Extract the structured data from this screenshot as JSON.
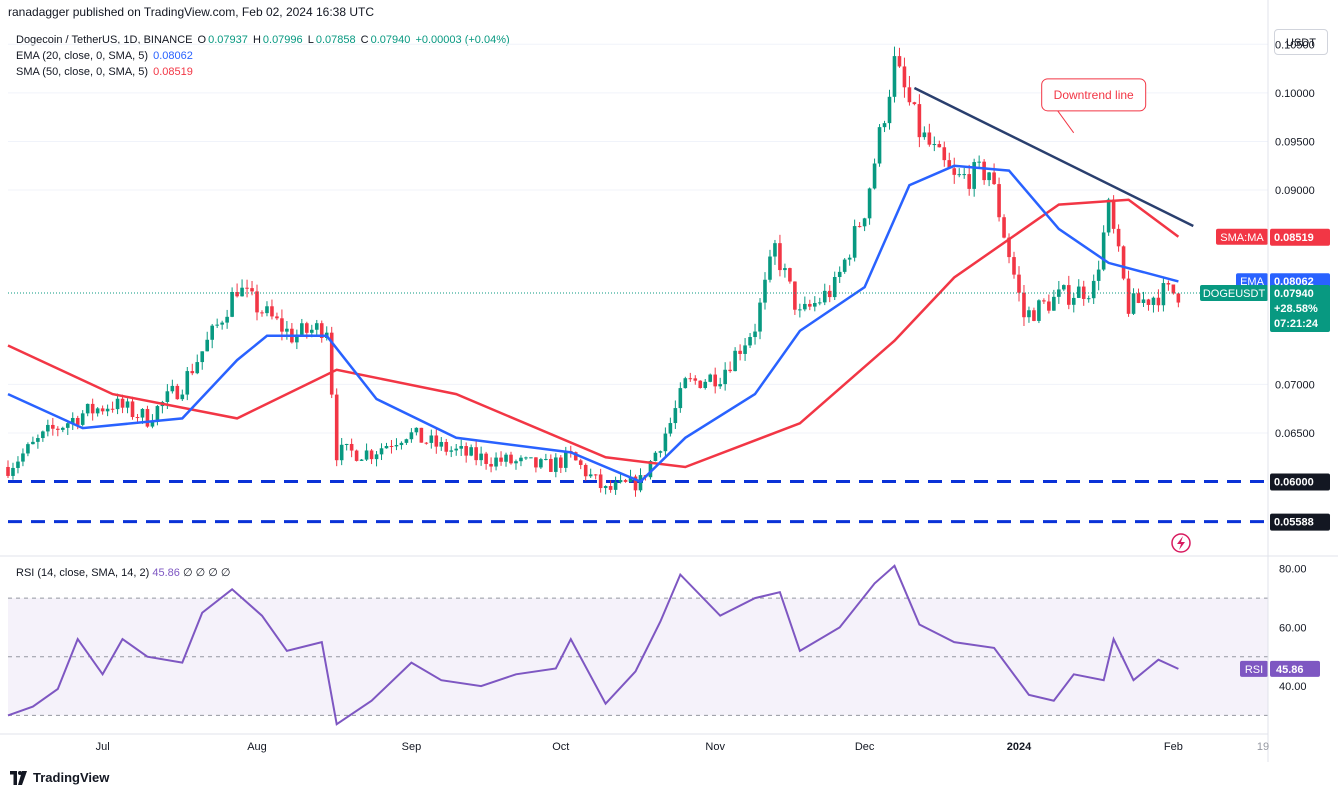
{
  "header": {
    "published": "ranadagger published on TradingView.com, Feb 02, 2024 16:38 UTC",
    "symbol": "Dogecoin / TetherUS, 1D, BINANCE",
    "ohlc": {
      "o_label": "O",
      "o": "0.07937",
      "h_label": "H",
      "h": "0.07996",
      "l_label": "L",
      "l": "0.07858",
      "c_label": "C",
      "c": "0.07940",
      "change": "+0.00003 (+0.04%)"
    },
    "ema_label": "EMA (20, close, 0, SMA, 5)",
    "ema_value": "0.08062",
    "sma_label": "SMA (50, close, 0, SMA, 5)",
    "sma_value": "0.08519",
    "currency_button": "USDT"
  },
  "footer": {
    "brand": "TradingView"
  },
  "colors": {
    "up": "#089981",
    "down": "#f23645",
    "ema": "#2962ff",
    "sma": "#f23645",
    "rsi": "#7e57c2",
    "support": "#0a32d7",
    "trend": "#2a3f6e"
  },
  "icons": {
    "logo": "tradingview-logo-icon",
    "alert": "lightning-icon"
  },
  "chart_data": [
    {
      "type": "candlestick",
      "pair": "DOGE/USDT",
      "timeframe": "1D",
      "y_axis": {
        "ticks": [
          0.105,
          0.1,
          0.095,
          0.09,
          0.07,
          0.065
        ],
        "tick_labels": [
          "0.10500",
          "0.10000",
          "0.09500",
          "0.09000",
          "0.07000",
          "0.06500"
        ],
        "range": [
          0.0545,
          0.1075
        ]
      },
      "x_axis": {
        "tick_labels": [
          "Jul",
          "Aug",
          "Sep",
          "Oct",
          "Nov",
          "Dec",
          "2024",
          "Feb",
          "19"
        ]
      },
      "x_range": [
        "2023-06-12",
        "2024-02-20"
      ],
      "closes_approx": [
        {
          "date": "2023-06-12",
          "close": 0.0615
        },
        {
          "date": "2023-06-20",
          "close": 0.065
        },
        {
          "date": "2023-06-27",
          "close": 0.067
        },
        {
          "date": "2023-07-03",
          "close": 0.068
        },
        {
          "date": "2023-07-10",
          "close": 0.0665
        },
        {
          "date": "2023-07-17",
          "close": 0.07
        },
        {
          "date": "2023-07-24",
          "close": 0.076
        },
        {
          "date": "2023-07-28",
          "close": 0.08
        },
        {
          "date": "2023-08-01",
          "close": 0.078
        },
        {
          "date": "2023-08-08",
          "close": 0.075
        },
        {
          "date": "2023-08-15",
          "close": 0.076
        },
        {
          "date": "2023-08-17",
          "close": 0.063
        },
        {
          "date": "2023-08-24",
          "close": 0.063
        },
        {
          "date": "2023-08-31",
          "close": 0.065
        },
        {
          "date": "2023-09-07",
          "close": 0.0635
        },
        {
          "date": "2023-09-14",
          "close": 0.0625
        },
        {
          "date": "2023-09-21",
          "close": 0.062
        },
        {
          "date": "2023-09-28",
          "close": 0.0615
        },
        {
          "date": "2023-10-03",
          "close": 0.0625
        },
        {
          "date": "2023-10-10",
          "close": 0.059
        },
        {
          "date": "2023-10-17",
          "close": 0.06
        },
        {
          "date": "2023-10-23",
          "close": 0.066
        },
        {
          "date": "2023-10-26",
          "close": 0.07
        },
        {
          "date": "2023-11-02",
          "close": 0.071
        },
        {
          "date": "2023-11-09",
          "close": 0.076
        },
        {
          "date": "2023-11-13",
          "close": 0.084
        },
        {
          "date": "2023-11-18",
          "close": 0.077
        },
        {
          "date": "2023-11-25",
          "close": 0.08
        },
        {
          "date": "2023-12-01",
          "close": 0.088
        },
        {
          "date": "2023-12-07",
          "close": 0.103
        },
        {
          "date": "2023-12-12",
          "close": 0.096
        },
        {
          "date": "2023-12-19",
          "close": 0.091
        },
        {
          "date": "2023-12-26",
          "close": 0.092
        },
        {
          "date": "2024-01-02",
          "close": 0.077
        },
        {
          "date": "2024-01-09",
          "close": 0.079
        },
        {
          "date": "2024-01-16",
          "close": 0.08
        },
        {
          "date": "2024-01-19",
          "close": 0.088
        },
        {
          "date": "2024-01-23",
          "close": 0.078
        },
        {
          "date": "2024-01-30",
          "close": 0.0795
        },
        {
          "date": "2024-02-02",
          "close": 0.0794
        }
      ],
      "ema20_approx": [
        {
          "date": "2023-06-12",
          "v": 0.069
        },
        {
          "date": "2023-06-27",
          "v": 0.0655
        },
        {
          "date": "2023-07-17",
          "v": 0.0665
        },
        {
          "date": "2023-07-28",
          "v": 0.0725
        },
        {
          "date": "2023-08-03",
          "v": 0.075
        },
        {
          "date": "2023-08-15",
          "v": 0.075
        },
        {
          "date": "2023-08-25",
          "v": 0.0685
        },
        {
          "date": "2023-09-10",
          "v": 0.0645
        },
        {
          "date": "2023-10-03",
          "v": 0.063
        },
        {
          "date": "2023-10-17",
          "v": 0.06
        },
        {
          "date": "2023-10-26",
          "v": 0.0645
        },
        {
          "date": "2023-11-09",
          "v": 0.069
        },
        {
          "date": "2023-11-18",
          "v": 0.0755
        },
        {
          "date": "2023-12-01",
          "v": 0.08
        },
        {
          "date": "2023-12-10",
          "v": 0.0905
        },
        {
          "date": "2023-12-19",
          "v": 0.0925
        },
        {
          "date": "2023-12-30",
          "v": 0.092
        },
        {
          "date": "2024-01-09",
          "v": 0.086
        },
        {
          "date": "2024-01-19",
          "v": 0.0825
        },
        {
          "date": "2024-02-02",
          "v": 0.0806
        }
      ],
      "sma50_approx": [
        {
          "date": "2023-06-12",
          "v": 0.074
        },
        {
          "date": "2023-07-03",
          "v": 0.069
        },
        {
          "date": "2023-07-28",
          "v": 0.0665
        },
        {
          "date": "2023-08-17",
          "v": 0.0715
        },
        {
          "date": "2023-09-10",
          "v": 0.069
        },
        {
          "date": "2023-10-10",
          "v": 0.0625
        },
        {
          "date": "2023-10-26",
          "v": 0.0615
        },
        {
          "date": "2023-11-18",
          "v": 0.066
        },
        {
          "date": "2023-12-07",
          "v": 0.0745
        },
        {
          "date": "2023-12-19",
          "v": 0.081
        },
        {
          "date": "2024-01-09",
          "v": 0.0885
        },
        {
          "date": "2024-01-23",
          "v": 0.089
        },
        {
          "date": "2024-02-02",
          "v": 0.0852
        }
      ],
      "price_labels": [
        {
          "label": "SMA:MA",
          "value": "0.08519"
        },
        {
          "label": "EMA",
          "value": "0.08062"
        },
        {
          "label": "DOGEUSDT",
          "value": "0.07940",
          "change": "+28.58%",
          "countdown": "07:21:24"
        }
      ],
      "support_levels": [
        {
          "value": 0.06,
          "label": "0.06000"
        },
        {
          "value": 0.05588,
          "label": "0.05588"
        }
      ],
      "trendline": {
        "from": {
          "date": "2023-12-11",
          "value": 0.1005
        },
        "to": {
          "date": "2024-02-05",
          "value": 0.0863
        }
      },
      "annotation": {
        "text": "Downtrend line",
        "date": "2024-01-16",
        "value": 0.0998
      }
    },
    {
      "type": "line",
      "title": "RSI (14, close, SMA, 14, 2)",
      "value": "45.86",
      "value_suffix": "∅ ∅ ∅ ∅",
      "y_axis": {
        "ticks": [
          80,
          60,
          40
        ],
        "tick_labels": [
          "80.00",
          "60.00",
          "40.00"
        ],
        "range": [
          24,
          84
        ],
        "band": [
          30,
          70
        ]
      },
      "rsi_label": "RSI",
      "series_approx": [
        {
          "date": "2023-06-12",
          "v": 30
        },
        {
          "date": "2023-06-17",
          "v": 33
        },
        {
          "date": "2023-06-22",
          "v": 39
        },
        {
          "date": "2023-06-26",
          "v": 56
        },
        {
          "date": "2023-07-01",
          "v": 44
        },
        {
          "date": "2023-07-05",
          "v": 56
        },
        {
          "date": "2023-07-10",
          "v": 50
        },
        {
          "date": "2023-07-17",
          "v": 48
        },
        {
          "date": "2023-07-21",
          "v": 65
        },
        {
          "date": "2023-07-27",
          "v": 73
        },
        {
          "date": "2023-08-02",
          "v": 64
        },
        {
          "date": "2023-08-07",
          "v": 52
        },
        {
          "date": "2023-08-14",
          "v": 55
        },
        {
          "date": "2023-08-17",
          "v": 27
        },
        {
          "date": "2023-08-24",
          "v": 35
        },
        {
          "date": "2023-09-01",
          "v": 48
        },
        {
          "date": "2023-09-07",
          "v": 42
        },
        {
          "date": "2023-09-15",
          "v": 40
        },
        {
          "date": "2023-09-22",
          "v": 44
        },
        {
          "date": "2023-09-30",
          "v": 46
        },
        {
          "date": "2023-10-03",
          "v": 56
        },
        {
          "date": "2023-10-10",
          "v": 34
        },
        {
          "date": "2023-10-16",
          "v": 45
        },
        {
          "date": "2023-10-21",
          "v": 62
        },
        {
          "date": "2023-10-25",
          "v": 78
        },
        {
          "date": "2023-11-02",
          "v": 64
        },
        {
          "date": "2023-11-09",
          "v": 70
        },
        {
          "date": "2023-11-14",
          "v": 72
        },
        {
          "date": "2023-11-18",
          "v": 52
        },
        {
          "date": "2023-11-26",
          "v": 60
        },
        {
          "date": "2023-12-03",
          "v": 75
        },
        {
          "date": "2023-12-07",
          "v": 81
        },
        {
          "date": "2023-12-12",
          "v": 61
        },
        {
          "date": "2023-12-19",
          "v": 55
        },
        {
          "date": "2023-12-27",
          "v": 53
        },
        {
          "date": "2024-01-03",
          "v": 37
        },
        {
          "date": "2024-01-08",
          "v": 35
        },
        {
          "date": "2024-01-12",
          "v": 44
        },
        {
          "date": "2024-01-18",
          "v": 42
        },
        {
          "date": "2024-01-20",
          "v": 56
        },
        {
          "date": "2024-01-24",
          "v": 42
        },
        {
          "date": "2024-01-29",
          "v": 49
        },
        {
          "date": "2024-02-02",
          "v": 45.86
        }
      ]
    }
  ]
}
